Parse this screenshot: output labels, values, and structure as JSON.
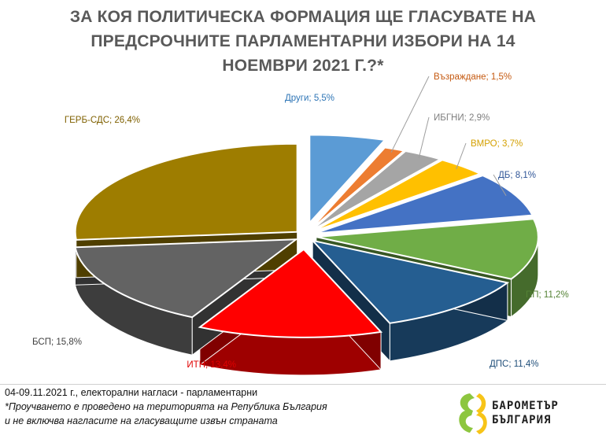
{
  "chart_data": {
    "type": "pie",
    "title_lines": [
      "ЗА КОЯ ПОЛИТИЧЕСКА ФОРМАЦИЯ ЩЕ ГЛАСУВАТЕ НА",
      "ПРЕДСРОЧНИТЕ ПАРЛАМЕНТАРНИ ИЗБОРИ НА 14",
      "НОЕМВРИ 2021 Г.?*"
    ],
    "slices": [
      {
        "name": "Други",
        "value": 5.5,
        "label": "Други; 5,5%",
        "color": "#5b9bd5",
        "label_color": "#2e75b6"
      },
      {
        "name": "Възраждане",
        "value": 1.5,
        "label": "Възраждане; 1,5%",
        "color": "#ed7d31",
        "label_color": "#c55a11"
      },
      {
        "name": "ИБГНИ",
        "value": 2.9,
        "label": "ИБГНИ; 2,9%",
        "color": "#a5a5a5",
        "label_color": "#7f7f7f"
      },
      {
        "name": "ВМРО",
        "value": 3.7,
        "label": "ВМРО; 3,7%",
        "color": "#ffc000",
        "label_color": "#d4a000"
      },
      {
        "name": "ДБ",
        "value": 8.1,
        "label": "ДБ; 8,1%",
        "color": "#4472c4",
        "label_color": "#2f5597"
      },
      {
        "name": "ПП",
        "value": 11.2,
        "label": "ПП; 11,2%",
        "color": "#70ad47",
        "label_color": "#548235"
      },
      {
        "name": "ДПС",
        "value": 11.4,
        "label": "ДПС; 11,4%",
        "color": "#255e91",
        "label_color": "#1f4e79"
      },
      {
        "name": "ИТН",
        "value": 13.4,
        "label": "ИТН; 13,4%",
        "color": "#ff0000",
        "label_color": "#e00000"
      },
      {
        "name": "БСП",
        "value": 15.8,
        "label": "БСП; 15,8%",
        "color": "#636363",
        "label_color": "#404040"
      },
      {
        "name": "ГЕРБ-СДС",
        "value": 26.4,
        "label": "ГЕРБ-СДС; 26,4%",
        "color": "#9e7d00",
        "label_color": "#7f6000"
      }
    ]
  },
  "footer": {
    "line1": "04-09.11.2021  г., електорални нагласи - парламентарни",
    "line2": "*Проучването е проведено на територията на Република България",
    "line3": "и не включва нагласите на гласуващите извън страната"
  },
  "logo": {
    "line1": "БАРОМЕТЪР",
    "line2": "БЪЛГАРИЯ",
    "colors": [
      "#8dc63f",
      "#f7c418"
    ]
  }
}
